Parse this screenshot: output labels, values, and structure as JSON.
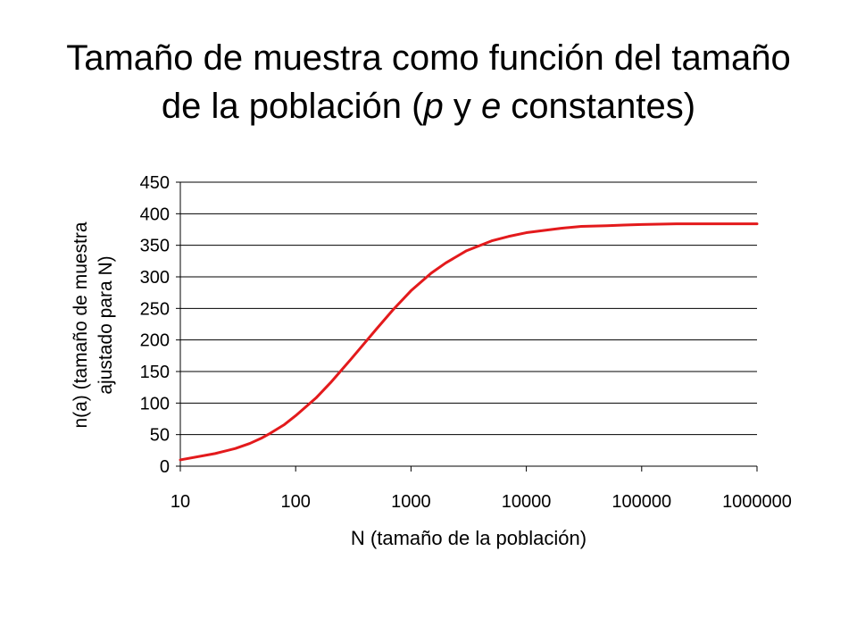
{
  "slide": {
    "title_line1": "Tamaño de muestra como función del tamaño",
    "title_line2_prefix": "de la población (",
    "title_p": "p",
    "title_mid": " y ",
    "title_e": "e",
    "title_suffix": " constantes)"
  },
  "chart_data": {
    "type": "line",
    "xscale": "log",
    "xlabel": "N (tamaño de la población)",
    "ylabel_line1": "n(a) (tamaño de muestra",
    "ylabel_line2": "ajustado para N)",
    "xlim": [
      10,
      1000000
    ],
    "ylim": [
      0,
      450
    ],
    "x_ticks": [
      10,
      100,
      1000,
      10000,
      100000,
      1000000
    ],
    "x_tick_labels": [
      "10",
      "100",
      "1000",
      "10000",
      "100000",
      "1000000"
    ],
    "y_ticks": [
      0,
      50,
      100,
      150,
      200,
      250,
      300,
      350,
      400,
      450
    ],
    "y_tick_labels": [
      "0",
      "50",
      "100",
      "150",
      "200",
      "250",
      "300",
      "350",
      "400",
      "450"
    ],
    "grid": "horizontal",
    "legend": "none",
    "line_color": "#e31a1c",
    "series": [
      {
        "x": [
          10,
          20,
          30,
          40,
          50,
          60,
          80,
          100,
          150,
          200,
          300,
          500,
          700,
          1000,
          1500,
          2000,
          3000,
          5000,
          7000,
          10000,
          20000,
          30000,
          50000,
          70000,
          100000,
          200000,
          500000,
          1000000
        ],
        "values": [
          10,
          20,
          28,
          36,
          44,
          52,
          66,
          80,
          108,
          132,
          169,
          217,
          248,
          278,
          306,
          322,
          341,
          357,
          364,
          370,
          377,
          380,
          381,
          382,
          383,
          384,
          384,
          384
        ]
      }
    ]
  }
}
